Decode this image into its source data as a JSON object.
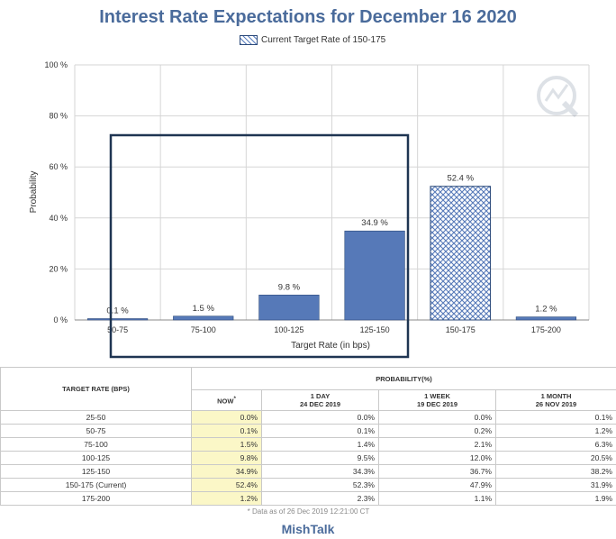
{
  "title": "Interest Rate Expectations for December 16 2020",
  "legend_label": "Current Target Rate of 150-175",
  "chart_data": {
    "type": "bar",
    "categories": [
      "50-75",
      "75-100",
      "100-125",
      "125-150",
      "150-175",
      "175-200"
    ],
    "values": [
      0.1,
      1.5,
      9.8,
      34.9,
      52.4,
      1.2
    ],
    "value_labels": [
      "0.1 %",
      "1.5 %",
      "9.8 %",
      "34.9 %",
      "52.4 %",
      "1.2 %"
    ],
    "highlight_category": "150-175",
    "xlabel": "Target Rate (in bps)",
    "ylabel": "Probability",
    "ylim": [
      0,
      100
    ],
    "yticks": [
      "0 %",
      "20 %",
      "40 %",
      "60 %",
      "80 %",
      "100 %"
    ],
    "colors": {
      "bar": "#5679b8",
      "bar_edge": "#2c4a7a",
      "highlight": "#5679b8"
    }
  },
  "table": {
    "header_rate": "TARGET RATE (BPS)",
    "header_prob": "PROBABILITY(%)",
    "col_now": "NOW",
    "col_now_mark": "*",
    "col_1day": "1 DAY",
    "col_1day_date": "24 DEC 2019",
    "col_1week": "1 WEEK",
    "col_1week_date": "19 DEC 2019",
    "col_1month": "1 MONTH",
    "col_1month_date": "26 NOV 2019",
    "rows": [
      {
        "rate": "25-50",
        "now": "0.0%",
        "d1": "0.0%",
        "w1": "0.0%",
        "m1": "0.1%"
      },
      {
        "rate": "50-75",
        "now": "0.1%",
        "d1": "0.1%",
        "w1": "0.2%",
        "m1": "1.2%"
      },
      {
        "rate": "75-100",
        "now": "1.5%",
        "d1": "1.4%",
        "w1": "2.1%",
        "m1": "6.3%"
      },
      {
        "rate": "100-125",
        "now": "9.8%",
        "d1": "9.5%",
        "w1": "12.0%",
        "m1": "20.5%"
      },
      {
        "rate": "125-150",
        "now": "34.9%",
        "d1": "34.3%",
        "w1": "36.7%",
        "m1": "38.2%"
      },
      {
        "rate": "150-175 (Current)",
        "now": "52.4%",
        "d1": "52.3%",
        "w1": "47.9%",
        "m1": "31.9%"
      },
      {
        "rate": "175-200",
        "now": "1.2%",
        "d1": "2.3%",
        "w1": "1.1%",
        "m1": "1.9%"
      }
    ],
    "data_note": "* Data as of 26 Dec 2019 12:21:00 CT"
  },
  "brand": "MishTalk"
}
